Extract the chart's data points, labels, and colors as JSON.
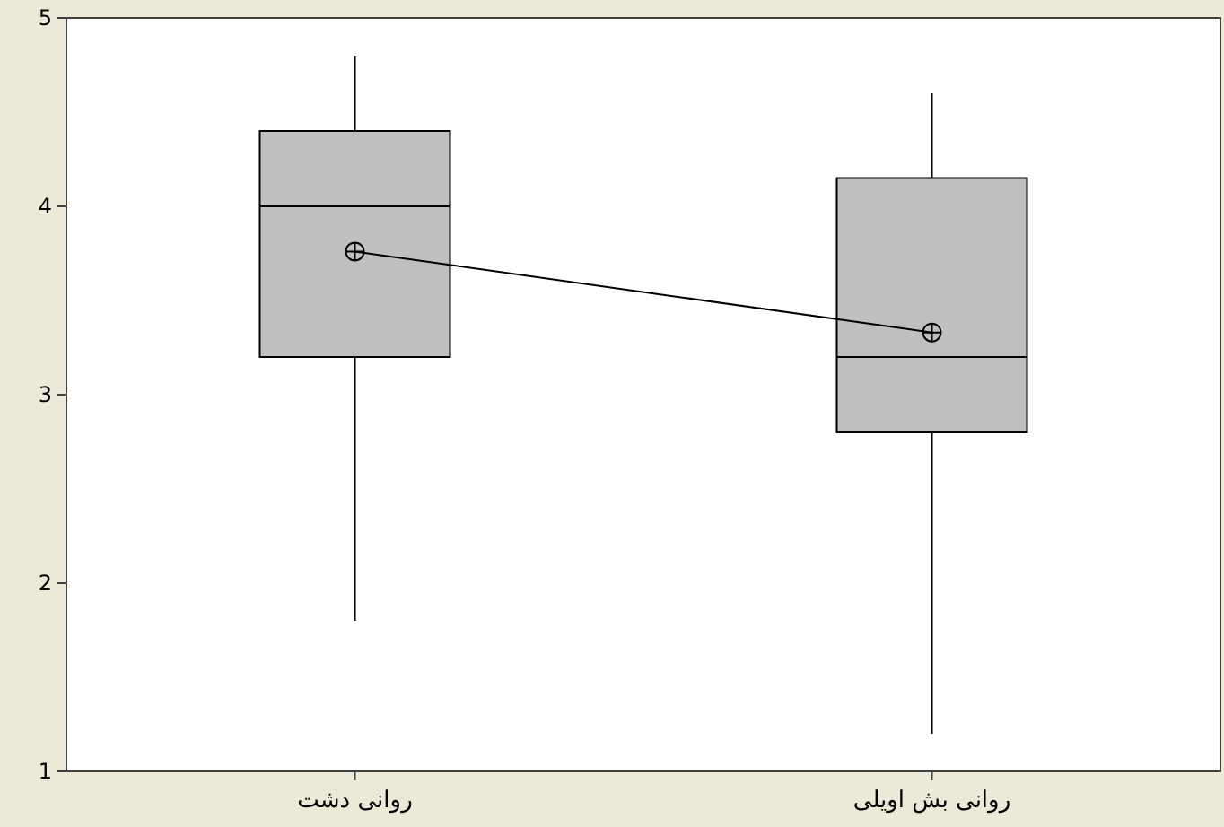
{
  "chart_data": {
    "type": "box",
    "categories": [
      "روانی دشت",
      "روانی بش اویلی"
    ],
    "boxes": [
      {
        "low": 1.8,
        "q1": 3.2,
        "median": 4.0,
        "q3": 4.4,
        "high": 4.8
      },
      {
        "low": 1.2,
        "q1": 2.8,
        "median": 3.2,
        "q3": 4.15,
        "high": 4.6
      }
    ],
    "color": "#c0c0c0",
    "series": [
      {
        "type": "line",
        "values": [
          3.76,
          3.33
        ],
        "color": "#000000",
        "marker": "circle"
      }
    ],
    "ylim": [
      1,
      5
    ],
    "yticks": [
      1,
      2,
      3,
      4,
      5
    ],
    "grid": false
  }
}
